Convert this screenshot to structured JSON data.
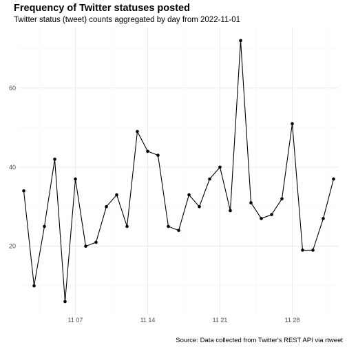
{
  "chart_data": {
    "type": "line",
    "title": "Frequency of Twitter statuses posted",
    "subtitle": "Twitter status (tweet) counts aggregated by day from  2022-11-01",
    "caption": "Source: Data collected from Twitter's REST API via rtweet",
    "xlabel": "",
    "ylabel": "",
    "x": [
      "2022-11-02",
      "2022-11-03",
      "2022-11-04",
      "2022-11-05",
      "2022-11-06",
      "2022-11-07",
      "2022-11-08",
      "2022-11-09",
      "2022-11-10",
      "2022-11-11",
      "2022-11-12",
      "2022-11-13",
      "2022-11-14",
      "2022-11-15",
      "2022-11-16",
      "2022-11-17",
      "2022-11-18",
      "2022-11-19",
      "2022-11-20",
      "2022-11-21",
      "2022-11-22",
      "2022-11-23",
      "2022-11-24",
      "2022-11-25",
      "2022-11-26",
      "2022-11-27",
      "2022-11-28",
      "2022-11-29",
      "2022-11-30",
      "2022-12-01",
      "2022-12-02"
    ],
    "values": [
      34,
      10,
      25,
      42,
      6,
      37,
      20,
      21,
      30,
      33,
      25,
      49,
      44,
      43,
      25,
      24,
      33,
      30,
      37,
      40,
      29,
      72,
      31,
      27,
      28,
      32,
      51,
      19,
      19,
      27,
      37
    ],
    "x_ticks": [
      {
        "date": "2022-11-07",
        "label": "11 07"
      },
      {
        "date": "2022-11-14",
        "label": "11 14"
      },
      {
        "date": "2022-11-21",
        "label": "11 21"
      },
      {
        "date": "2022-11-28",
        "label": "11 28"
      }
    ],
    "y_ticks": [
      20,
      40,
      60
    ],
    "xlim": [
      "2022-11-01T12:00",
      "2022-12-02T12:00"
    ],
    "ylim": [
      2.7,
      75.3
    ],
    "grid": true,
    "colors": {
      "line": "#000000",
      "point": "#000000",
      "grid_major": "#ebebeb",
      "grid_minor": "#f5f5f5"
    }
  }
}
